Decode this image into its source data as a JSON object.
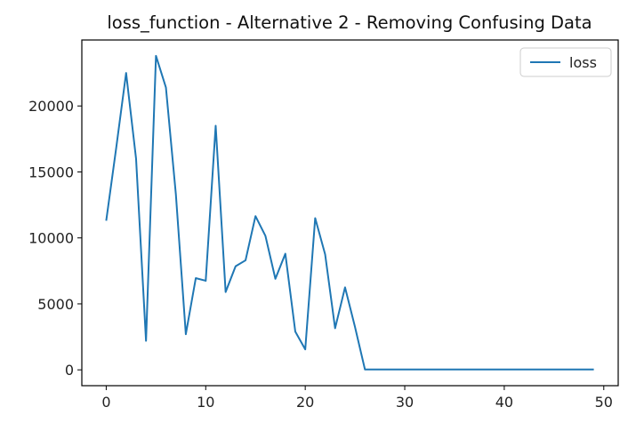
{
  "chart_data": {
    "type": "line",
    "title": "loss_function - Alternative 2 - Removing Confusing Data",
    "xlabel": "",
    "ylabel": "",
    "xlim": [
      -2.45,
      51.45
    ],
    "ylim": [
      -1200,
      25000
    ],
    "x_ticks": [
      0,
      10,
      20,
      30,
      40,
      50
    ],
    "y_ticks": [
      0,
      5000,
      10000,
      15000,
      20000
    ],
    "grid": false,
    "legend_position": "top-right",
    "color": "#1f77b4",
    "series": [
      {
        "name": "loss",
        "x": [
          0,
          1,
          2,
          3,
          4,
          5,
          6,
          7,
          8,
          9,
          10,
          11,
          12,
          13,
          14,
          15,
          16,
          17,
          18,
          19,
          20,
          21,
          22,
          23,
          24,
          25,
          26,
          27,
          28,
          29,
          30,
          31,
          32,
          33,
          34,
          35,
          36,
          37,
          38,
          39,
          40,
          41,
          42,
          43,
          44,
          45,
          46,
          47,
          48,
          49
        ],
        "values": [
          11300,
          16800,
          22500,
          16000,
          2200,
          23800,
          21400,
          13300,
          2700,
          6950,
          6750,
          18500,
          5900,
          7850,
          8300,
          11650,
          10150,
          6900,
          8800,
          2900,
          1550,
          11500,
          8750,
          3150,
          6250,
          3250,
          30,
          30,
          30,
          30,
          30,
          30,
          30,
          30,
          30,
          30,
          30,
          30,
          30,
          30,
          30,
          30,
          30,
          30,
          30,
          30,
          30,
          30,
          30,
          30
        ]
      }
    ]
  }
}
